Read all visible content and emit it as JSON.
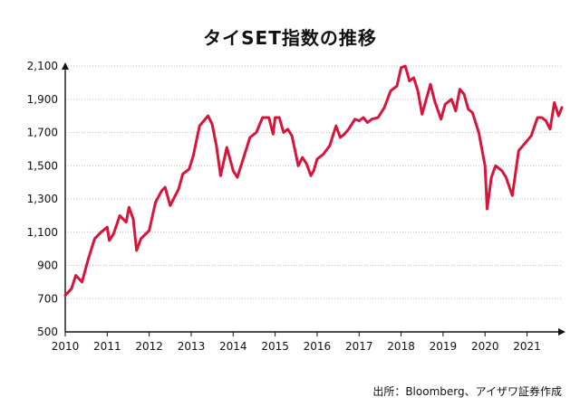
{
  "chart_data": {
    "type": "line",
    "title": "タイSET指数の推移",
    "xlabel": "",
    "ylabel": "",
    "xlim": [
      2010,
      2021.83
    ],
    "ylim": [
      500,
      2100
    ],
    "x_ticks": [
      2010,
      2011,
      2012,
      2013,
      2014,
      2015,
      2016,
      2017,
      2018,
      2019,
      2020,
      2021
    ],
    "x_tick_labels": [
      "2010",
      "2011",
      "2012",
      "2013",
      "2014",
      "2015",
      "2016",
      "2017",
      "2018",
      "2019",
      "2020",
      "2021"
    ],
    "y_ticks": [
      500,
      700,
      900,
      1100,
      1300,
      1500,
      1700,
      1900,
      2100
    ],
    "y_tick_labels": [
      "500",
      "700",
      "900",
      "1,100",
      "1,300",
      "1,500",
      "1,700",
      "1,900",
      "2,100"
    ],
    "grid": "horizontal",
    "legend": "none",
    "series": [
      {
        "name": "",
        "color": "#d9143a",
        "x": [
          2010.0,
          2010.15,
          2010.25,
          2010.4,
          2010.55,
          2010.7,
          2010.85,
          2011.0,
          2011.05,
          2011.15,
          2011.3,
          2011.45,
          2011.52,
          2011.62,
          2011.7,
          2011.8,
          2012.0,
          2012.15,
          2012.3,
          2012.38,
          2012.5,
          2012.7,
          2012.8,
          2012.95,
          2013.05,
          2013.2,
          2013.3,
          2013.4,
          2013.5,
          2013.6,
          2013.7,
          2013.85,
          2014.0,
          2014.1,
          2014.3,
          2014.4,
          2014.55,
          2014.7,
          2014.85,
          2014.95,
          2015.0,
          2015.1,
          2015.2,
          2015.3,
          2015.4,
          2015.5,
          2015.55,
          2015.65,
          2015.75,
          2015.85,
          2015.92,
          2016.0,
          2016.15,
          2016.3,
          2016.45,
          2016.55,
          2016.65,
          2016.75,
          2016.9,
          2017.0,
          2017.1,
          2017.2,
          2017.3,
          2017.45,
          2017.6,
          2017.75,
          2017.9,
          2018.0,
          2018.1,
          2018.2,
          2018.3,
          2018.4,
          2018.5,
          2018.7,
          2018.8,
          2018.95,
          2019.05,
          2019.2,
          2019.3,
          2019.4,
          2019.5,
          2019.6,
          2019.7,
          2019.85,
          2020.0,
          2020.05,
          2020.15,
          2020.25,
          2020.4,
          2020.5,
          2020.65,
          2020.8,
          2020.9,
          2021.0,
          2021.1,
          2021.25,
          2021.35,
          2021.45,
          2021.55,
          2021.65,
          2021.75,
          2021.83
        ],
        "y": [
          720,
          760,
          840,
          800,
          940,
          1060,
          1100,
          1130,
          1050,
          1090,
          1200,
          1160,
          1250,
          1180,
          990,
          1060,
          1110,
          1280,
          1350,
          1370,
          1260,
          1360,
          1450,
          1480,
          1560,
          1740,
          1770,
          1800,
          1750,
          1620,
          1440,
          1610,
          1470,
          1430,
          1590,
          1670,
          1700,
          1790,
          1790,
          1690,
          1790,
          1790,
          1700,
          1720,
          1680,
          1560,
          1500,
          1550,
          1510,
          1440,
          1470,
          1540,
          1570,
          1620,
          1740,
          1670,
          1690,
          1720,
          1780,
          1770,
          1790,
          1760,
          1780,
          1790,
          1850,
          1950,
          1980,
          2090,
          2100,
          2010,
          2030,
          1950,
          1810,
          1990,
          1890,
          1780,
          1870,
          1900,
          1830,
          1960,
          1930,
          1840,
          1820,
          1700,
          1500,
          1240,
          1430,
          1500,
          1470,
          1430,
          1320,
          1590,
          1620,
          1650,
          1680,
          1790,
          1790,
          1770,
          1720,
          1880,
          1800,
          1850
        ]
      }
    ]
  },
  "source_note": "出所：Bloomberg、アイザワ証券作成"
}
